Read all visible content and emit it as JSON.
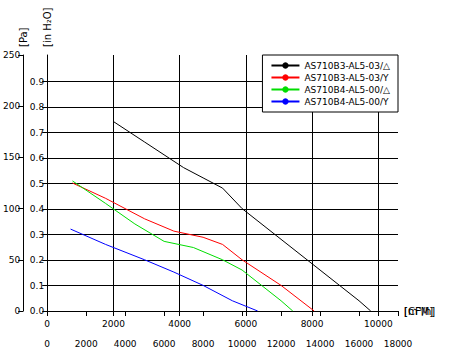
{
  "chart_data": {
    "type": "line",
    "x_label": "[m³/h]",
    "x2_label": "[CFM]",
    "y_label": "[Pa]",
    "y2_label": "[in H₂O]",
    "xlim": [
      0,
      18000
    ],
    "xticks": [
      0,
      2000,
      4000,
      6000,
      8000,
      10000,
      12000,
      14000,
      16000,
      18000
    ],
    "x2lim": [
      0,
      10594.5
    ],
    "x2ticks": [
      0,
      2000,
      4000,
      6000,
      8000,
      10000
    ],
    "ylim": [
      0,
      250
    ],
    "yticks": [
      0,
      50,
      100,
      150,
      200,
      250
    ],
    "y2lim": [
      0,
      1.004
    ],
    "y2ticks": [
      {
        "value": 0,
        "label": "0.0"
      },
      0.1,
      0.2,
      0.3,
      0.4,
      0.5,
      0.6,
      0.7,
      0.8,
      0.9
    ],
    "grid": true,
    "legend": "upper right",
    "series": [
      {
        "name": "AS710B3-AL5-03/△",
        "color": "#000000",
        "line_style": "solid",
        "x": [
          3400,
          5000,
          7000,
          8000,
          9000,
          10000,
          12000,
          14000,
          16000,
          16600
        ],
        "values": [
          185,
          165,
          140,
          130,
          120,
          100,
          70,
          40,
          10,
          0
        ]
      },
      {
        "name": "AS710B3-AL5-03/Y",
        "color": "#ff0000",
        "line_style": "solid",
        "x": [
          1300,
          3000,
          5000,
          6500,
          8000,
          9000,
          10000,
          12000,
          13700
        ],
        "values": [
          125,
          110,
          90,
          78,
          72,
          65,
          50,
          25,
          0
        ]
      },
      {
        "name": "AS710B4-AL5-00/△",
        "color": "#00dd00",
        "line_style": "solid",
        "x": [
          1300,
          3000,
          4500,
          6000,
          7500,
          9000,
          10000,
          11000,
          12000,
          12600
        ],
        "values": [
          127,
          105,
          85,
          68,
          62,
          50,
          40,
          25,
          10,
          0
        ]
      },
      {
        "name": "AS710B4-AL5-00/Y",
        "color": "#0000ff",
        "line_style": "solid",
        "x": [
          1200,
          3000,
          5000,
          6500,
          8000,
          9500,
          10800
        ],
        "values": [
          80,
          65,
          50,
          38,
          25,
          10,
          0
        ]
      }
    ]
  }
}
